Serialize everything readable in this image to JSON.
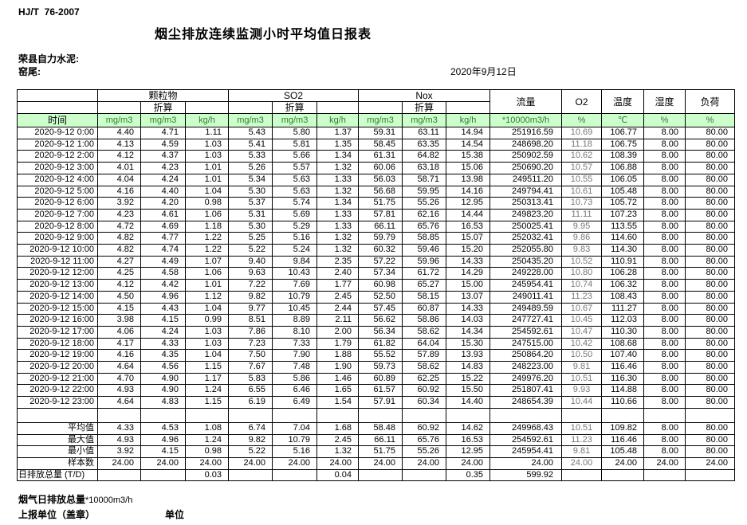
{
  "page": {
    "standard": "HJ/T  76-2007",
    "title": "烟尘排放连续监测小时平均值日报表",
    "company": "荣县自力水泥:",
    "location": "窑尾:",
    "date": "2020年9月12日"
  },
  "colors": {
    "header_bg": "#ccffcc",
    "header_unit_text": "#2e7d2e",
    "o2_column_text": "#777777",
    "border": "#000000"
  },
  "table": {
    "time_label": "时间",
    "conv_label": "折算",
    "group_headers": {
      "pm": "颗粒物",
      "so2": "SO2",
      "nox": "Nox",
      "flow": "流量",
      "o2": "O2",
      "temp": "温度",
      "humidity": "湿度",
      "load": "负荷"
    },
    "unit_row": [
      "mg/m3",
      "mg/m3",
      "kg/h",
      "mg/m3",
      "mg/m3",
      "kg/h",
      "mg/m3",
      "mg/m3",
      "kg/h",
      "*10000m3/h",
      "%",
      "℃",
      "%",
      "%"
    ],
    "rows": [
      [
        "2020-9-12 0:00",
        "4.40",
        "4.71",
        "1.11",
        "5.43",
        "5.80",
        "1.37",
        "59.31",
        "63.11",
        "14.94",
        "251916.59",
        "10.69",
        "106.77",
        "8.00",
        "80.00"
      ],
      [
        "2020-9-12 1:00",
        "4.13",
        "4.59",
        "1.03",
        "5.41",
        "5.81",
        "1.35",
        "58.45",
        "63.35",
        "14.54",
        "248698.20",
        "11.18",
        "106.75",
        "8.00",
        "80.00"
      ],
      [
        "2020-9-12 2:00",
        "4.12",
        "4.37",
        "1.03",
        "5.33",
        "5.66",
        "1.34",
        "61.31",
        "64.82",
        "15.38",
        "250902.59",
        "10.62",
        "108.39",
        "8.00",
        "80.00"
      ],
      [
        "2020-9-12 3:00",
        "4.01",
        "4.23",
        "1.01",
        "5.26",
        "5.57",
        "1.32",
        "60.06",
        "63.18",
        "15.06",
        "250690.20",
        "10.57",
        "106.88",
        "8.00",
        "80.00"
      ],
      [
        "2020-9-12 4:00",
        "4.04",
        "4.24",
        "1.01",
        "5.34",
        "5.63",
        "1.33",
        "56.03",
        "58.71",
        "13.98",
        "249511.20",
        "10.55",
        "106.05",
        "8.00",
        "80.00"
      ],
      [
        "2020-9-12 5:00",
        "4.16",
        "4.40",
        "1.04",
        "5.30",
        "5.63",
        "1.32",
        "56.68",
        "59.95",
        "14.16",
        "249794.41",
        "10.61",
        "105.48",
        "8.00",
        "80.00"
      ],
      [
        "2020-9-12 6:00",
        "3.92",
        "4.20",
        "0.98",
        "5.37",
        "5.74",
        "1.34",
        "51.75",
        "55.26",
        "12.95",
        "250313.41",
        "10.73",
        "105.72",
        "8.00",
        "80.00"
      ],
      [
        "2020-9-12 7:00",
        "4.23",
        "4.61",
        "1.06",
        "5.31",
        "5.69",
        "1.33",
        "57.81",
        "62.16",
        "14.44",
        "249823.20",
        "11.11",
        "107.23",
        "8.00",
        "80.00"
      ],
      [
        "2020-9-12 8:00",
        "4.72",
        "4.69",
        "1.18",
        "5.30",
        "5.29",
        "1.33",
        "66.11",
        "65.76",
        "16.53",
        "250025.41",
        "9.95",
        "113.55",
        "8.00",
        "80.00"
      ],
      [
        "2020-9-12 9:00",
        "4.82",
        "4.77",
        "1.22",
        "5.25",
        "5.16",
        "1.32",
        "59.79",
        "58.85",
        "15.07",
        "252032.41",
        "9.86",
        "114.60",
        "8.00",
        "80.00"
      ],
      [
        "2020-9-12 10:00",
        "4.82",
        "4.74",
        "1.22",
        "5.22",
        "5.24",
        "1.32",
        "60.32",
        "59.46",
        "15.20",
        "252055.80",
        "9.83",
        "114.30",
        "8.00",
        "80.00"
      ],
      [
        "2020-9-12 11:00",
        "4.27",
        "4.49",
        "1.07",
        "9.40",
        "9.84",
        "2.35",
        "57.22",
        "59.96",
        "14.33",
        "250435.20",
        "10.52",
        "110.91",
        "8.00",
        "80.00"
      ],
      [
        "2020-9-12 12:00",
        "4.25",
        "4.58",
        "1.06",
        "9.63",
        "10.43",
        "2.40",
        "57.34",
        "61.72",
        "14.29",
        "249228.00",
        "10.80",
        "106.28",
        "8.00",
        "80.00"
      ],
      [
        "2020-9-12 13:00",
        "4.12",
        "4.42",
        "1.01",
        "7.22",
        "7.69",
        "1.77",
        "60.98",
        "65.27",
        "15.00",
        "245954.41",
        "10.74",
        "106.32",
        "8.00",
        "80.00"
      ],
      [
        "2020-9-12 14:00",
        "4.50",
        "4.96",
        "1.12",
        "9.82",
        "10.79",
        "2.45",
        "52.50",
        "58.15",
        "13.07",
        "249011.41",
        "11.23",
        "108.43",
        "8.00",
        "80.00"
      ],
      [
        "2020-9-12 15:00",
        "4.15",
        "4.43",
        "1.04",
        "9.77",
        "10.45",
        "2.44",
        "57.45",
        "60.87",
        "14.33",
        "249489.59",
        "10.67",
        "111.27",
        "8.00",
        "80.00"
      ],
      [
        "2020-9-12 16:00",
        "3.98",
        "4.15",
        "0.99",
        "8.51",
        "8.89",
        "2.11",
        "56.62",
        "58.86",
        "14.03",
        "247727.41",
        "10.45",
        "112.03",
        "8.00",
        "80.00"
      ],
      [
        "2020-9-12 17:00",
        "4.06",
        "4.24",
        "1.03",
        "7.86",
        "8.10",
        "2.00",
        "56.34",
        "58.62",
        "14.34",
        "254592.61",
        "10.47",
        "110.30",
        "8.00",
        "80.00"
      ],
      [
        "2020-9-12 18:00",
        "4.17",
        "4.33",
        "1.03",
        "7.23",
        "7.33",
        "1.79",
        "61.82",
        "64.04",
        "15.30",
        "247515.00",
        "10.42",
        "108.68",
        "8.00",
        "80.00"
      ],
      [
        "2020-9-12 19:00",
        "4.16",
        "4.35",
        "1.04",
        "7.50",
        "7.90",
        "1.88",
        "55.52",
        "57.89",
        "13.93",
        "250864.20",
        "10.50",
        "107.40",
        "8.00",
        "80.00"
      ],
      [
        "2020-9-12 20:00",
        "4.64",
        "4.56",
        "1.15",
        "7.67",
        "7.48",
        "1.90",
        "59.73",
        "58.62",
        "14.83",
        "248223.00",
        "9.81",
        "116.46",
        "8.00",
        "80.00"
      ],
      [
        "2020-9-12 21:00",
        "4.70",
        "4.90",
        "1.17",
        "5.83",
        "5.86",
        "1.46",
        "60.89",
        "62.25",
        "15.22",
        "249976.20",
        "10.51",
        "116.30",
        "8.00",
        "80.00"
      ],
      [
        "2020-9-12 22:00",
        "4.93",
        "4.90",
        "1.24",
        "6.55",
        "6.46",
        "1.65",
        "61.57",
        "60.92",
        "15.50",
        "251807.41",
        "9.93",
        "114.88",
        "8.00",
        "80.00"
      ],
      [
        "2020-9-12 23:00",
        "4.64",
        "4.83",
        "1.15",
        "6.19",
        "6.49",
        "1.54",
        "57.91",
        "60.34",
        "14.40",
        "248654.39",
        "10.44",
        "110.66",
        "8.00",
        "80.00"
      ]
    ],
    "summary": [
      [
        "平均值",
        "4.33",
        "4.53",
        "1.08",
        "6.74",
        "7.04",
        "1.68",
        "58.48",
        "60.92",
        "14.62",
        "249968.43",
        "10.51",
        "109.82",
        "8.00",
        "80.00"
      ],
      [
        "最大值",
        "4.93",
        "4.96",
        "1.24",
        "9.82",
        "10.79",
        "2.45",
        "66.11",
        "65.76",
        "16.53",
        "254592.61",
        "11.23",
        "116.46",
        "8.00",
        "80.00"
      ],
      [
        "最小值",
        "3.92",
        "4.15",
        "0.98",
        "5.22",
        "5.16",
        "1.32",
        "51.75",
        "55.26",
        "12.95",
        "245954.41",
        "9.81",
        "105.48",
        "8.00",
        "80.00"
      ],
      [
        "样本数",
        "24.00",
        "24.00",
        "24.00",
        "24.00",
        "24.00",
        "24.00",
        "24.00",
        "24.00",
        "24.00",
        "24.00",
        "24.00",
        "24.00",
        "24.00",
        "24.00"
      ],
      [
        "日排放总量 (T/D)",
        "",
        "",
        "0.03",
        "",
        "",
        "0.04",
        "",
        "",
        "0.35",
        "599.92",
        "",
        "",
        "",
        ""
      ]
    ]
  },
  "footer": {
    "flue_total_label": "烟气日排放总量",
    "flue_total_unit": "*10000m3/h",
    "report_unit_label": "上报单位（盖章）",
    "unit_label": "单位"
  }
}
